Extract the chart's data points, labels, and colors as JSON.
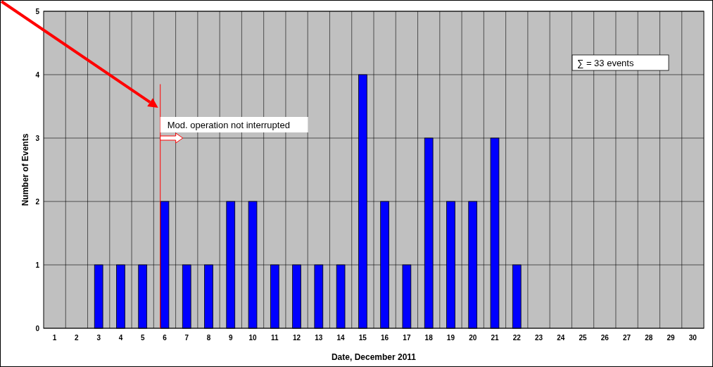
{
  "chart_data": {
    "type": "bar",
    "xlabel": "Date, December 2011",
    "ylabel": "Number of Events",
    "x": [
      1,
      2,
      3,
      4,
      5,
      6,
      7,
      8,
      9,
      10,
      11,
      12,
      13,
      14,
      15,
      16,
      17,
      18,
      19,
      20,
      21,
      22,
      23,
      24,
      25,
      26,
      27,
      28,
      29,
      30
    ],
    "values": [
      0,
      0,
      1,
      1,
      1,
      2,
      1,
      1,
      2,
      2,
      1,
      1,
      1,
      1,
      4,
      2,
      1,
      3,
      2,
      2,
      3,
      1,
      0,
      0,
      0,
      0,
      0,
      0,
      0,
      0
    ],
    "color": "#0000ff",
    "xlim": [
      0.5,
      30.5
    ],
    "xticks": [
      1,
      2,
      3,
      4,
      5,
      6,
      7,
      8,
      9,
      10,
      11,
      12,
      13,
      14,
      15,
      16,
      17,
      18,
      19,
      20,
      21,
      22,
      23,
      24,
      25,
      26,
      27,
      28,
      29,
      30
    ],
    "ylim": [
      0,
      5
    ],
    "yticks": [
      0,
      1,
      2,
      3,
      4,
      5
    ],
    "grid": true,
    "ref_lines": [
      {
        "axis": "x",
        "value": 5.8,
        "color": "#ff0000"
      }
    ],
    "annotations": [
      {
        "text": "Mod. operation not interrupted",
        "x": 5.8,
        "y": 3.2
      },
      "∑ = 33 events"
    ]
  }
}
